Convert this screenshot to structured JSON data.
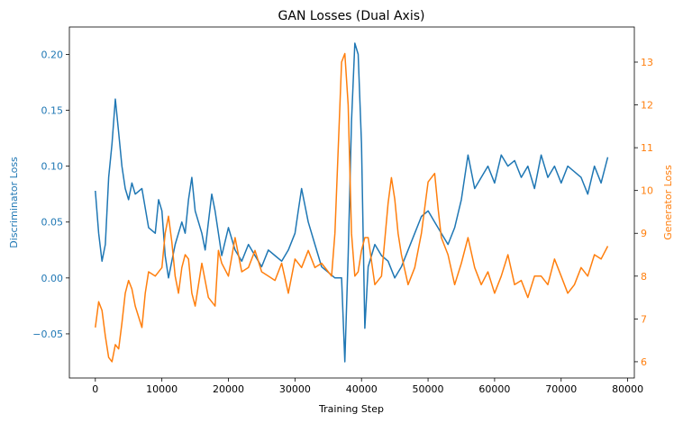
{
  "chart_data": {
    "type": "line",
    "title": "GAN Losses (Dual Axis)",
    "xlabel": "Training Step",
    "ylabel_left": "Discriminator Loss",
    "ylabel_right": "Generator Loss",
    "xlim": [
      -3900,
      81000
    ],
    "ylim_left": [
      -0.0895,
      0.2245
    ],
    "ylim_right": [
      5.62,
      13.82
    ],
    "x_ticks": [
      0,
      10000,
      20000,
      30000,
      40000,
      50000,
      60000,
      70000,
      80000
    ],
    "x_tick_labels": [
      "0",
      "10000",
      "20000",
      "30000",
      "40000",
      "50000",
      "60000",
      "70000",
      "80000"
    ],
    "y_left_ticks": [
      -0.05,
      0.0,
      0.05,
      0.1,
      0.15,
      0.2
    ],
    "y_left_tick_labels": [
      "−0.05",
      "0.00",
      "0.05",
      "0.10",
      "0.15",
      "0.20"
    ],
    "y_right_ticks": [
      6,
      7,
      8,
      9,
      10,
      11,
      12,
      13
    ],
    "y_right_tick_labels": [
      "6",
      "7",
      "8",
      "9",
      "10",
      "11",
      "12",
      "13"
    ],
    "grid": false,
    "legend": "none",
    "series": [
      {
        "axis": "left",
        "color": "#1f77b4",
        "x": [
          0,
          500,
          1000,
          1500,
          2000,
          2500,
          3000,
          3500,
          4000,
          4500,
          5000,
          5500,
          6000,
          7000,
          8000,
          9000,
          9500,
          10000,
          10500,
          11000,
          11500,
          12000,
          13000,
          13500,
          14000,
          14500,
          15000,
          16000,
          16500,
          17000,
          17500,
          18000,
          18500,
          19000,
          20000,
          21000,
          22000,
          23000,
          24000,
          25000,
          26000,
          27000,
          28000,
          29000,
          30000,
          30500,
          31000,
          32000,
          33000,
          34000,
          35000,
          36000,
          37000,
          37500,
          38000,
          38500,
          39000,
          39500,
          40000,
          40500,
          41000,
          42000,
          43000,
          44000,
          45000,
          46000,
          47000,
          48000,
          49000,
          50000,
          51000,
          52000,
          53000,
          54000,
          55000,
          56000,
          57000,
          58000,
          59000,
          60000,
          61000,
          62000,
          63000,
          64000,
          65000,
          66000,
          67000,
          68000,
          69000,
          70000,
          71000,
          72000,
          73000,
          74000,
          75000,
          76000,
          77000
        ],
        "y": [
          0.078,
          0.04,
          0.015,
          0.03,
          0.09,
          0.12,
          0.16,
          0.13,
          0.1,
          0.08,
          0.07,
          0.085,
          0.075,
          0.08,
          0.045,
          0.04,
          0.07,
          0.06,
          0.02,
          0.0,
          0.015,
          0.03,
          0.05,
          0.04,
          0.07,
          0.09,
          0.06,
          0.04,
          0.025,
          0.05,
          0.075,
          0.06,
          0.04,
          0.02,
          0.045,
          0.025,
          0.015,
          0.03,
          0.02,
          0.01,
          0.025,
          0.02,
          0.015,
          0.025,
          0.04,
          0.06,
          0.08,
          0.05,
          0.03,
          0.01,
          0.005,
          0.0,
          0.0,
          -0.075,
          0.02,
          0.14,
          0.21,
          0.2,
          0.12,
          -0.045,
          0.01,
          0.03,
          0.02,
          0.015,
          0.0,
          0.01,
          0.025,
          0.04,
          0.055,
          0.06,
          0.05,
          0.04,
          0.03,
          0.045,
          0.07,
          0.11,
          0.08,
          0.09,
          0.1,
          0.085,
          0.11,
          0.1,
          0.105,
          0.09,
          0.1,
          0.08,
          0.11,
          0.09,
          0.1,
          0.085,
          0.1,
          0.095,
          0.09,
          0.075,
          0.1,
          0.085,
          0.108
        ]
      },
      {
        "axis": "right",
        "color": "#ff7f0e",
        "x": [
          0,
          500,
          1000,
          1500,
          2000,
          2500,
          3000,
          3500,
          4000,
          4500,
          5000,
          5500,
          6000,
          7000,
          7500,
          8000,
          9000,
          10000,
          10500,
          11000,
          11500,
          12000,
          12500,
          13000,
          13500,
          14000,
          14500,
          15000,
          16000,
          17000,
          18000,
          18500,
          19000,
          20000,
          21000,
          22000,
          23000,
          24000,
          25000,
          26000,
          27000,
          28000,
          29000,
          30000,
          31000,
          32000,
          33000,
          34000,
          35000,
          35500,
          36000,
          36500,
          37000,
          37500,
          38000,
          38500,
          39000,
          39500,
          40000,
          40500,
          41000,
          42000,
          43000,
          44000,
          44500,
          45000,
          45500,
          46000,
          47000,
          48000,
          49000,
          50000,
          51000,
          51500,
          52000,
          53000,
          54000,
          55000,
          56000,
          57000,
          58000,
          59000,
          60000,
          61000,
          62000,
          63000,
          64000,
          65000,
          66000,
          67000,
          68000,
          69000,
          70000,
          71000,
          72000,
          73000,
          74000,
          75000,
          76000,
          77000
        ],
        "y": [
          6.8,
          7.4,
          7.2,
          6.6,
          6.1,
          6.0,
          6.4,
          6.3,
          6.9,
          7.6,
          7.9,
          7.7,
          7.3,
          6.8,
          7.6,
          8.1,
          8.0,
          8.2,
          9.0,
          9.4,
          8.8,
          8.0,
          7.6,
          8.2,
          8.5,
          8.4,
          7.6,
          7.3,
          8.3,
          7.5,
          7.3,
          8.6,
          8.3,
          8.0,
          8.9,
          8.1,
          8.2,
          8.6,
          8.1,
          8.0,
          7.9,
          8.3,
          7.6,
          8.4,
          8.2,
          8.6,
          8.2,
          8.3,
          8.1,
          8.0,
          9.0,
          11.0,
          13.0,
          13.2,
          12.0,
          9.0,
          8.0,
          8.1,
          8.6,
          8.9,
          8.9,
          7.8,
          8.0,
          9.7,
          10.3,
          9.8,
          9.0,
          8.5,
          7.8,
          8.2,
          9.0,
          10.2,
          10.4,
          9.6,
          8.9,
          8.5,
          7.8,
          8.3,
          8.9,
          8.2,
          7.8,
          8.1,
          7.6,
          8.0,
          8.5,
          7.8,
          7.9,
          7.5,
          8.0,
          8.0,
          7.8,
          8.4,
          8.0,
          7.6,
          7.8,
          8.2,
          8.0,
          8.5,
          8.4,
          8.7
        ]
      }
    ]
  }
}
